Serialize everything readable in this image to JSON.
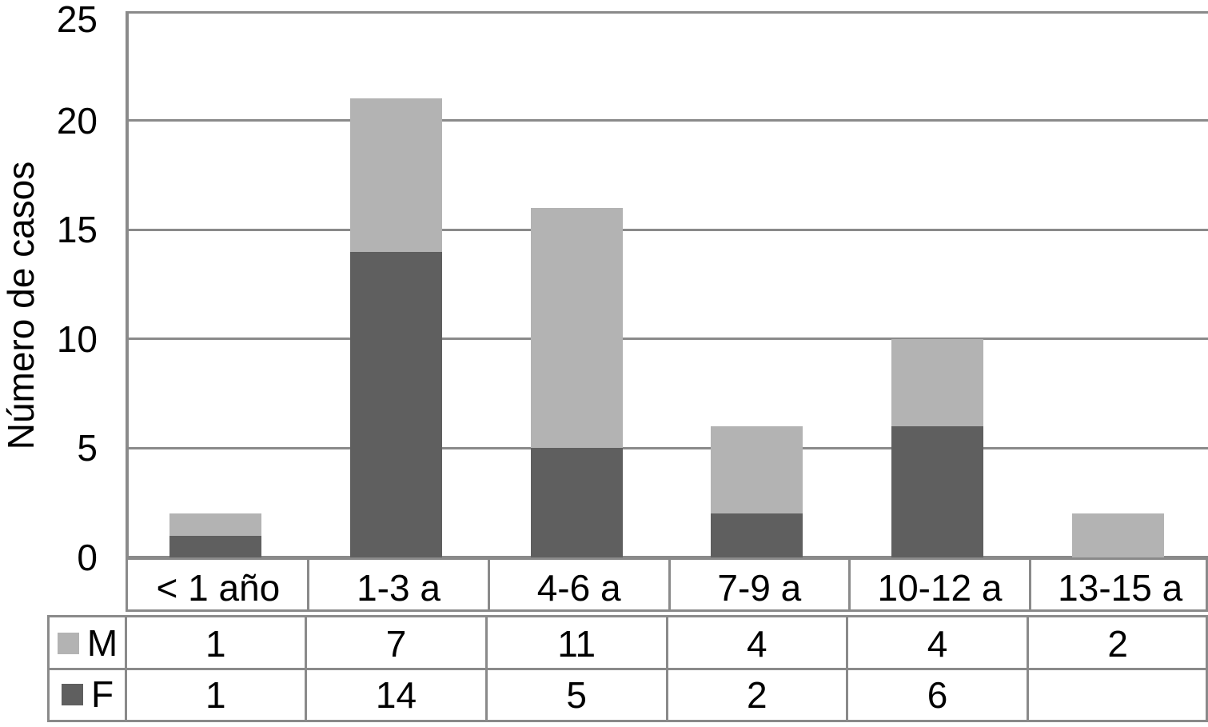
{
  "chart_data": {
    "type": "bar",
    "stacked": true,
    "title": "",
    "xlabel": "",
    "ylabel": "Número de casos",
    "categories": [
      "< 1 año",
      "1-3 a",
      "4-6 a",
      "7-9 a",
      "10-12 a",
      "13-15 a"
    ],
    "series": [
      {
        "name": "M",
        "color": "#b3b3b3",
        "values": [
          1,
          7,
          11,
          4,
          4,
          2
        ]
      },
      {
        "name": "F",
        "color": "#5f5f5f",
        "values": [
          1,
          14,
          5,
          2,
          6,
          null
        ]
      }
    ],
    "stack_order_bottom_to_top": [
      "F",
      "M"
    ],
    "ylim": [
      0,
      25
    ],
    "yticks": [
      0,
      5,
      10,
      15,
      20,
      25
    ],
    "grid": true,
    "legend_position": "table-left",
    "data_table_visible": true,
    "totals": [
      2,
      21,
      16,
      6,
      10,
      2
    ]
  },
  "colors": {
    "bar_m": "#b3b3b3",
    "bar_f": "#5f5f5f",
    "grid": "#8a8a8a",
    "text": "#000000",
    "background": "#ffffff"
  }
}
